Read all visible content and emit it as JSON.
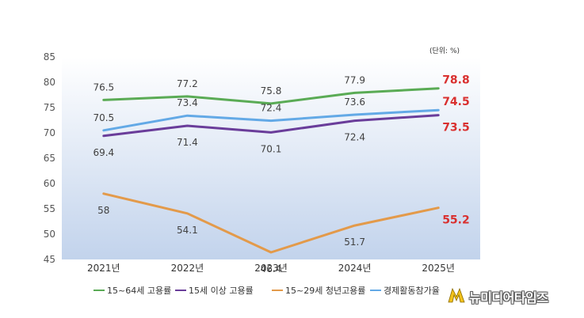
{
  "chart_data": {
    "type": "line",
    "unit_note": "(단위: %)",
    "categories": [
      "2021년",
      "2022년",
      "2023년",
      "2024년",
      "2025년"
    ],
    "ylim": [
      45,
      85
    ],
    "yticks": [
      45,
      50,
      55,
      60,
      65,
      70,
      75,
      80,
      85
    ],
    "series": [
      {
        "name": "15~64세 고용률",
        "legend_label": "15~64세 고용률",
        "color": "#5aab55",
        "values": [
          76.5,
          77.2,
          75.8,
          77.9,
          78.8
        ],
        "label_pos": "above"
      },
      {
        "name": "15세 이상 고용률",
        "legend_label": "15세 이상 고용률",
        "color": "#6a3d9a",
        "values": [
          69.4,
          71.4,
          70.1,
          72.4,
          73.5
        ],
        "label_pos": "below"
      },
      {
        "name": "15~29세 청년고용률",
        "legend_label": "15~29세 청년고용률",
        "color": "#e39a4a",
        "values": [
          58,
          54.1,
          46.4,
          51.7,
          55.2
        ],
        "label_pos": "below"
      },
      {
        "name": "경제활동참가율",
        "legend_label": "경제활동참가율",
        "color": "#63a9e6",
        "values": [
          70.5,
          73.4,
          72.4,
          73.6,
          74.5
        ],
        "label_pos": "above"
      }
    ],
    "highlight_color": "#d9302f",
    "grid": false,
    "legend_position": "bottom"
  },
  "watermark": {
    "text": "뉴미디어타임즈",
    "icon": "lightning-m-logo-icon"
  }
}
